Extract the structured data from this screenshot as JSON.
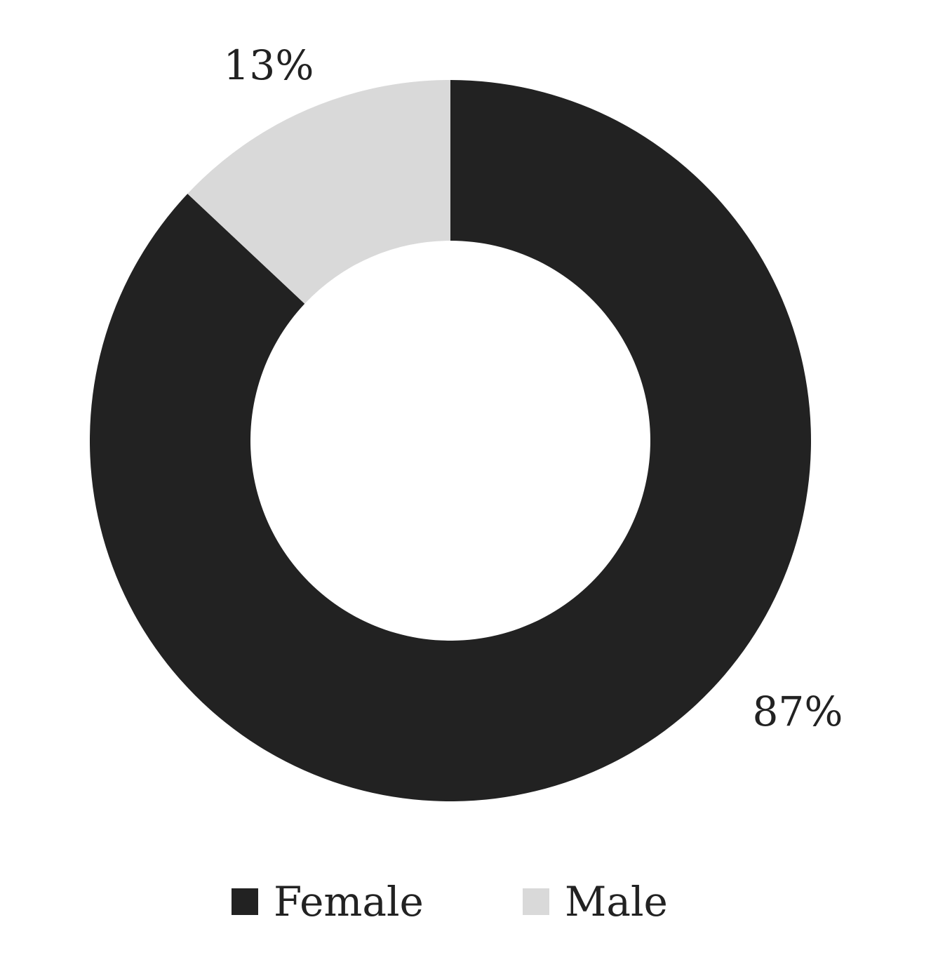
{
  "chart_data": {
    "type": "pie",
    "donut": true,
    "categories": [
      "Female",
      "Male"
    ],
    "values": [
      87,
      13
    ],
    "data_labels": [
      "87%",
      "13%"
    ],
    "colors": [
      "#222222",
      "#d9d9d9"
    ],
    "legend": {
      "placement": "bottom",
      "entries": [
        "Female",
        "Male"
      ]
    }
  }
}
